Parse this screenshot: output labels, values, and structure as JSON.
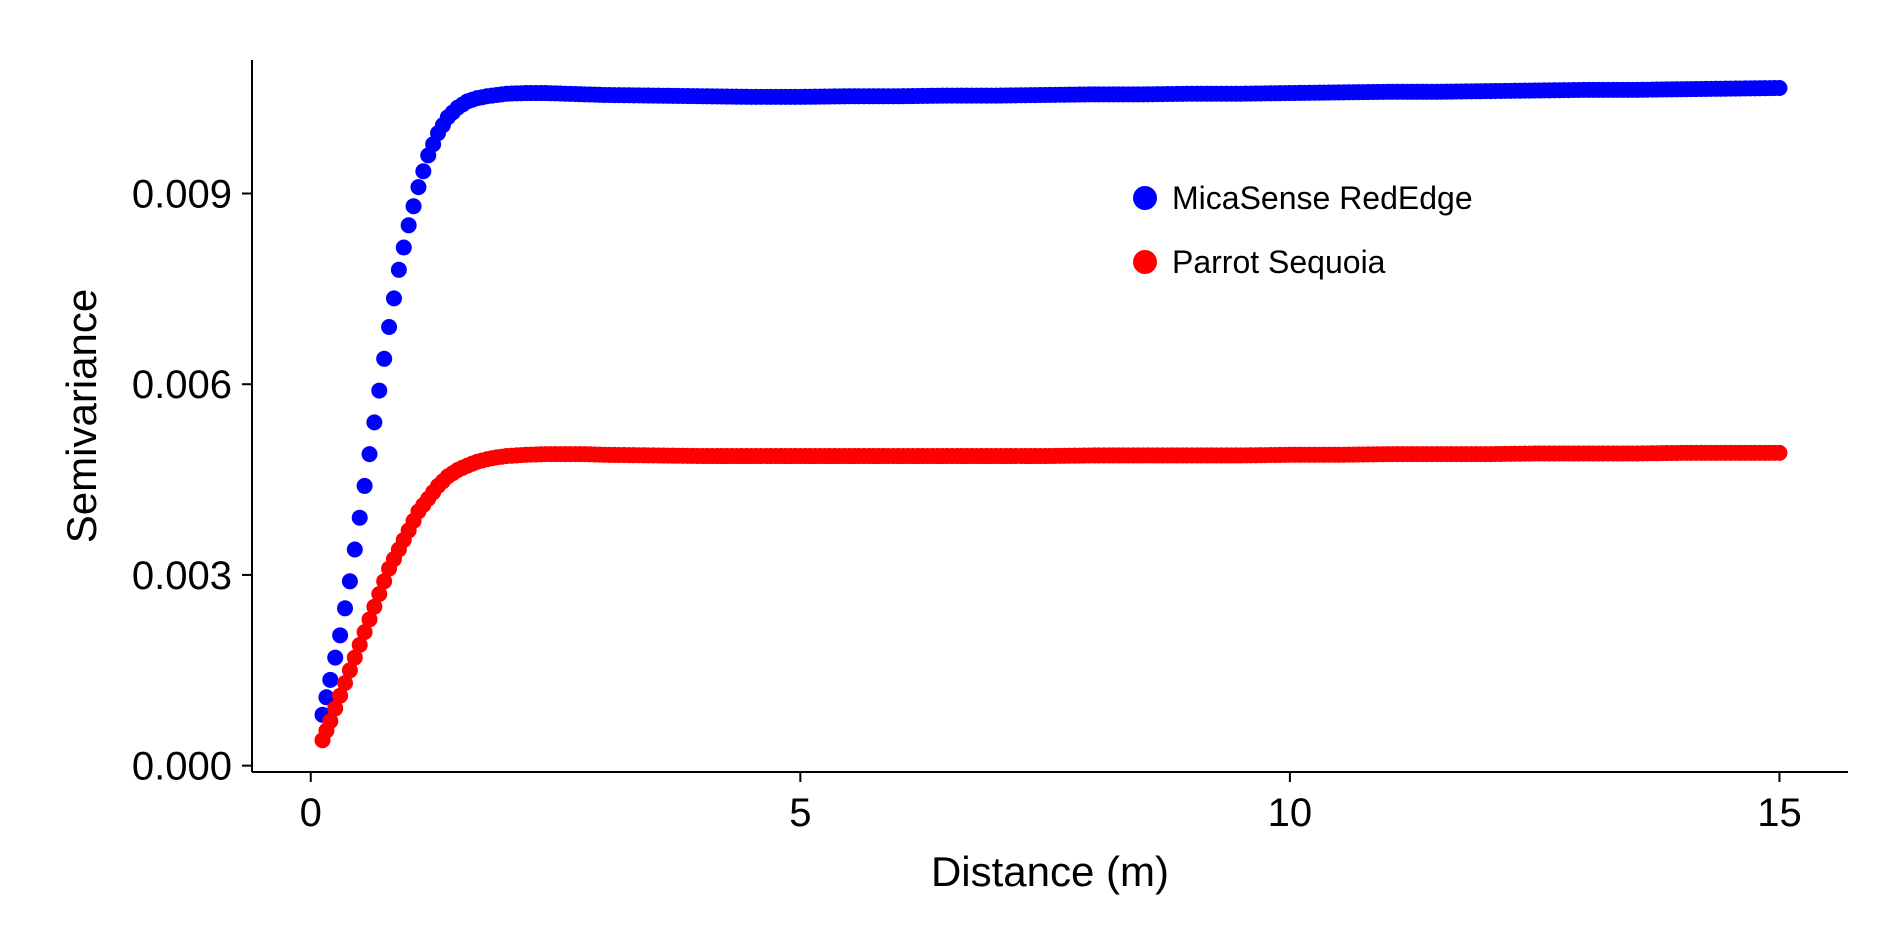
{
  "chart_data": {
    "type": "scatter",
    "title": "",
    "xlabel": "Distance (m)",
    "ylabel": "Semivariance",
    "xlim": [
      -0.6,
      15.7
    ],
    "ylim": [
      -0.0001,
      0.0111
    ],
    "xticks": [
      0,
      5,
      10,
      15
    ],
    "xtick_labels": [
      "0",
      "5",
      "10",
      "15"
    ],
    "yticks": [
      0.0,
      0.003,
      0.006,
      0.009
    ],
    "ytick_labels": [
      "0.000",
      "0.003",
      "0.006",
      "0.009"
    ],
    "grid": false,
    "legend_position": "top-right",
    "series": [
      {
        "name": "MicaSense RedEdge",
        "color": "#0000ff",
        "x": [
          0.12,
          0.2,
          0.3,
          0.4,
          0.5,
          0.6,
          0.7,
          0.8,
          0.9,
          1.0,
          1.1,
          1.2,
          1.3,
          1.4,
          1.5,
          1.6,
          1.7,
          1.8,
          1.9,
          2.0,
          2.2,
          2.4,
          2.6,
          2.8,
          3.0,
          3.5,
          4.0,
          4.5,
          5.0,
          5.5,
          6.0,
          6.5,
          7.0,
          7.5,
          8.0,
          8.5,
          9.0,
          9.5,
          10.0,
          10.5,
          11.0,
          11.5,
          12.0,
          12.5,
          13.0,
          13.5,
          14.0,
          14.5,
          15.0
        ],
        "y": [
          0.0008,
          0.00135,
          0.00205,
          0.0029,
          0.0039,
          0.0049,
          0.0059,
          0.0069,
          0.0078,
          0.0085,
          0.0091,
          0.0096,
          0.00995,
          0.0102,
          0.01035,
          0.01045,
          0.0105,
          0.01053,
          0.01055,
          0.01057,
          0.01058,
          0.01058,
          0.01057,
          0.01056,
          0.01055,
          0.01054,
          0.01053,
          0.01052,
          0.01052,
          0.01053,
          0.01053,
          0.01054,
          0.01054,
          0.01055,
          0.01056,
          0.01056,
          0.01057,
          0.01057,
          0.01058,
          0.01059,
          0.0106,
          0.0106,
          0.01061,
          0.01062,
          0.01063,
          0.01063,
          0.01064,
          0.01065,
          0.01066
        ]
      },
      {
        "name": "Parrot Sequoia",
        "color": "#ff0000",
        "x": [
          0.12,
          0.2,
          0.3,
          0.4,
          0.5,
          0.6,
          0.7,
          0.8,
          0.9,
          1.0,
          1.1,
          1.2,
          1.3,
          1.4,
          1.5,
          1.6,
          1.7,
          1.8,
          1.9,
          2.0,
          2.2,
          2.4,
          2.6,
          2.8,
          3.0,
          3.5,
          4.0,
          4.5,
          5.0,
          5.5,
          6.0,
          6.5,
          7.0,
          7.5,
          8.0,
          8.5,
          9.0,
          9.5,
          10.0,
          10.5,
          11.0,
          11.5,
          12.0,
          12.5,
          13.0,
          13.5,
          14.0,
          14.5,
          15.0
        ],
        "y": [
          0.0004,
          0.0007,
          0.0011,
          0.0015,
          0.0019,
          0.0023,
          0.0027,
          0.0031,
          0.0034,
          0.0037,
          0.004,
          0.0042,
          0.0044,
          0.00455,
          0.00465,
          0.00472,
          0.00478,
          0.00482,
          0.00485,
          0.00487,
          0.00489,
          0.0049,
          0.0049,
          0.0049,
          0.00489,
          0.00488,
          0.00487,
          0.00487,
          0.00487,
          0.00487,
          0.00487,
          0.00487,
          0.00487,
          0.00487,
          0.00488,
          0.00488,
          0.00488,
          0.00488,
          0.00489,
          0.00489,
          0.0049,
          0.0049,
          0.0049,
          0.00491,
          0.00491,
          0.00491,
          0.00492,
          0.00492,
          0.00492
        ]
      }
    ]
  }
}
